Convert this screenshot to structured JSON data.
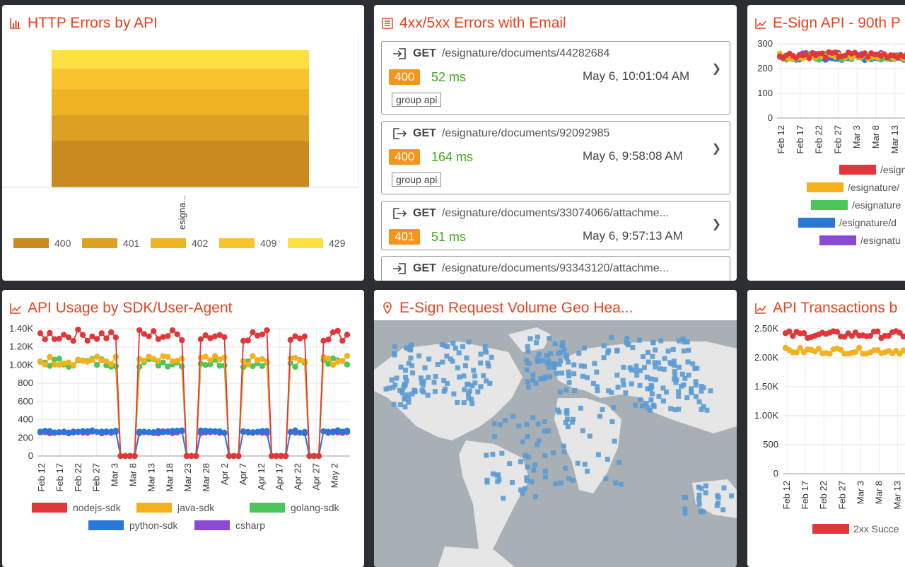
{
  "panels": {
    "http_errors": {
      "title": "HTTP Errors by API",
      "xtick": "esignа...",
      "legend": [
        "400",
        "401",
        "402",
        "409",
        "429"
      ]
    },
    "errors_email": {
      "title": "4xx/5xx Errors with Email",
      "items": [
        {
          "method": "GET",
          "path": "/esignature/documents/44282684",
          "status": "400",
          "ms": "52 ms",
          "time": "May 6, 10:01:04 AM",
          "tag": "group api",
          "icon": "sign-in-icon"
        },
        {
          "method": "GET",
          "path": "/esignature/documents/92092985",
          "status": "400",
          "ms": "164 ms",
          "time": "May 6, 9:58:08 AM",
          "tag": "group api",
          "icon": "sign-out-icon"
        },
        {
          "method": "GET",
          "path": "/esignature/documents/33074066/attachme...",
          "status": "401",
          "ms": "51 ms",
          "time": "May 6, 9:57:13 AM",
          "tag": "",
          "icon": "sign-out-icon"
        },
        {
          "method": "GET",
          "path": "/esignature/documents/93343120/attachme...",
          "status": "",
          "ms": "",
          "time": "",
          "tag": "",
          "icon": "sign-in-icon"
        }
      ]
    },
    "esign_latency": {
      "title": "E-Sign API - 90th P",
      "legend": [
        "/esign",
        "/esignature/",
        "/esignature",
        "/esignature/d",
        "/esignatu"
      ]
    },
    "sdk_usage": {
      "title": "API Usage by SDK/User-Agent",
      "legend": [
        "nodejs-sdk",
        "java-sdk",
        "golang-sdk",
        "python-sdk",
        "csharp"
      ]
    },
    "geo": {
      "title": "E-Sign Request Volume Geo Hea..."
    },
    "transactions": {
      "title": "API Transactions b",
      "legend": [
        "2xx Succe"
      ]
    }
  },
  "chart_data": [
    {
      "type": "bar",
      "title": "HTTP Errors by API",
      "categories": [
        "esignа..."
      ],
      "series": [
        {
          "name": "400",
          "values": [
            25
          ]
        },
        {
          "name": "401",
          "values": [
            14
          ]
        },
        {
          "name": "402",
          "values": [
            14
          ]
        },
        {
          "name": "409",
          "values": [
            11
          ]
        },
        {
          "name": "429",
          "values": [
            10
          ]
        }
      ],
      "stacked": true,
      "colors": [
        "#c98a1e",
        "#dca023",
        "#eeb223",
        "#f8c32d",
        "#fde042"
      ],
      "legend": "bottom"
    },
    {
      "type": "line",
      "title": "E-Sign API - 90th P",
      "ylim": [
        0,
        300
      ],
      "yticks": [
        0,
        100,
        200,
        300
      ],
      "xticks": [
        "Feb 12",
        "Feb 17",
        "Feb 22",
        "Feb 27",
        "Mar 3",
        "Mar 8",
        "Mar 13"
      ],
      "series": [
        {
          "name": "/esign",
          "color": "#e0383a",
          "level": 255
        },
        {
          "name": "/esignature/",
          "color": "#f3b11d",
          "level": 250
        },
        {
          "name": "/esignature",
          "color": "#4ec55a",
          "level": 248
        },
        {
          "name": "/esignature/d",
          "color": "#2a78d6",
          "level": 245
        },
        {
          "name": "/esignatu",
          "color": "#8a4ad6",
          "level": 252
        }
      ],
      "legend": "bottom"
    },
    {
      "type": "line",
      "title": "API Usage by SDK/User-Agent",
      "ylim": [
        0,
        1400
      ],
      "yticks": [
        "0",
        "200",
        "400",
        "600",
        "800",
        "1.00K",
        "1.20K",
        "1.40K"
      ],
      "xticks": [
        "Feb 12",
        "Feb 17",
        "Feb 22",
        "Feb 27",
        "Mar 3",
        "Mar 8",
        "Mar 13",
        "Mar 18",
        "Mar 23",
        "Mar 28",
        "Apr 2",
        "Apr 7",
        "Apr 12",
        "Apr 17",
        "Apr 22",
        "Apr 27",
        "May 2"
      ],
      "series": [
        {
          "name": "nodejs-sdk",
          "color": "#e0383a",
          "level": 1330
        },
        {
          "name": "java-sdk",
          "color": "#f3b11d",
          "level": 1050
        },
        {
          "name": "golang-sdk",
          "color": "#4ec55a",
          "level": 1030
        },
        {
          "name": "python-sdk",
          "color": "#2a78d6",
          "level": 270
        },
        {
          "name": "csharp",
          "color": "#8a4ad6",
          "level": 260
        }
      ],
      "outages": [
        [
          17,
          20
        ],
        [
          31,
          33
        ],
        [
          40,
          42
        ],
        [
          49,
          52
        ],
        [
          57,
          59
        ]
      ],
      "legend": "bottom"
    },
    {
      "type": "line",
      "title": "API Transactions b",
      "ylim": [
        0,
        2500
      ],
      "yticks": [
        "0",
        "500",
        "1.00K",
        "1.50K",
        "2.00K",
        "2.50K"
      ],
      "xticks": [
        "Feb 12",
        "Feb 17",
        "Feb 22",
        "Feb 27",
        "Mar 3",
        "Mar 8",
        "Mar 13"
      ],
      "series": [
        {
          "name": "2xx Succe",
          "color": "#e0383a",
          "level": 2400
        },
        {
          "name": "",
          "color": "#f3b11d",
          "level": 2120
        }
      ],
      "legend": "bottom"
    }
  ]
}
